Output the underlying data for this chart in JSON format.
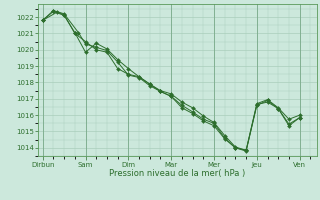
{
  "xlabel": "Pression niveau de la mer( hPa )",
  "background_color": "#cce8dc",
  "grid_color": "#aacebb",
  "line_color": "#2d6e2d",
  "marker_color": "#2d6e2d",
  "ylim": [
    1013.5,
    1022.8
  ],
  "yticks": [
    1014,
    1015,
    1016,
    1017,
    1018,
    1019,
    1020,
    1021,
    1022
  ],
  "xtick_labels": [
    "Dirbun",
    "Sam",
    "Dim",
    "Mar",
    "Mer",
    "Jeu",
    "Ven"
  ],
  "xtick_positions": [
    0,
    2,
    4,
    6,
    8,
    10,
    12
  ],
  "series1_x": [
    0,
    0.67,
    1.0,
    1.5,
    2.0,
    2.5,
    3.0,
    3.5,
    4.0,
    4.5,
    5.0,
    5.5,
    6.0,
    6.5,
    7.0,
    7.5,
    8.0,
    8.5,
    9.0,
    9.5,
    10.0,
    10.5,
    11.0,
    11.5,
    12.0
  ],
  "series1_y": [
    1021.8,
    1022.3,
    1022.15,
    1021.0,
    1020.5,
    1020.0,
    1019.85,
    1018.85,
    1018.5,
    1018.35,
    1017.9,
    1017.45,
    1017.15,
    1016.6,
    1016.2,
    1015.75,
    1015.5,
    1014.6,
    1014.0,
    1013.85,
    1016.7,
    1016.95,
    1016.45,
    1015.75,
    1016.0
  ],
  "series2_x": [
    0,
    0.5,
    1.0,
    1.5,
    2.0,
    2.5,
    3.0,
    3.5,
    4.0,
    4.5,
    5.0,
    5.5,
    6.0,
    6.5,
    7.0,
    7.5,
    8.0,
    8.5,
    9.0,
    9.5,
    10.0,
    10.5,
    11.0,
    11.5,
    12.0
  ],
  "series2_y": [
    1021.8,
    1022.35,
    1022.1,
    1021.05,
    1019.85,
    1020.4,
    1020.05,
    1019.4,
    1018.85,
    1018.35,
    1017.9,
    1017.5,
    1017.3,
    1016.8,
    1016.45,
    1015.95,
    1015.55,
    1014.75,
    1014.05,
    1013.85,
    1016.65,
    1016.8,
    1016.4,
    1015.45,
    1015.85
  ],
  "series3_x": [
    0,
    0.5,
    1.0,
    1.67,
    2.0,
    2.5,
    3.0,
    3.5,
    4.0,
    4.5,
    5.0,
    5.5,
    6.0,
    6.5,
    7.0,
    7.5,
    8.0,
    8.5,
    9.0,
    9.5,
    10.0,
    10.5,
    11.0,
    11.5,
    12.0
  ],
  "series3_y": [
    1021.8,
    1022.4,
    1022.2,
    1021.05,
    1020.35,
    1020.15,
    1019.95,
    1019.25,
    1018.45,
    1018.3,
    1017.8,
    1017.45,
    1017.15,
    1016.45,
    1016.1,
    1015.65,
    1015.35,
    1014.55,
    1014.0,
    1013.8,
    1016.6,
    1016.9,
    1016.4,
    1015.35,
    1015.85
  ]
}
